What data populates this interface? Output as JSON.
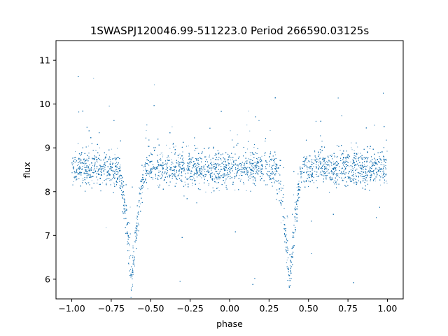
{
  "chart_data": {
    "type": "scatter",
    "title": "1SWASPJ120046.99-511223.0 Period 266590.03125s",
    "xlabel": "phase",
    "ylabel": "flux",
    "xlim": [
      -1.1,
      1.1
    ],
    "ylim": [
      5.55,
      11.45
    ],
    "grid": false,
    "legend": "none",
    "series_color": "#1f77b4",
    "x_ticks": [
      -1.0,
      -0.75,
      -0.5,
      -0.25,
      0.0,
      0.25,
      0.5,
      0.75,
      1.0
    ],
    "x_tick_labels": [
      "−1.00",
      "−0.75",
      "−0.50",
      "−0.25",
      "0.00",
      "0.25",
      "0.50",
      "0.75",
      "1.00"
    ],
    "y_ticks": [
      6,
      7,
      8,
      9,
      10,
      11
    ],
    "y_tick_labels": [
      "6",
      "7",
      "8",
      "9",
      "10",
      "11"
    ],
    "x_range": [
      -1.0,
      1.0
    ],
    "baseline_flux": 8.52,
    "baseline_scatter": 0.2,
    "eclipses": [
      {
        "phase_center": -0.62,
        "min_flux": 5.9,
        "half_width": 0.09
      },
      {
        "phase_center": 0.38,
        "min_flux": 5.9,
        "half_width": 0.09
      }
    ],
    "outlier_flux_range": [
      5.8,
      11.2
    ],
    "point_count": 22000
  }
}
